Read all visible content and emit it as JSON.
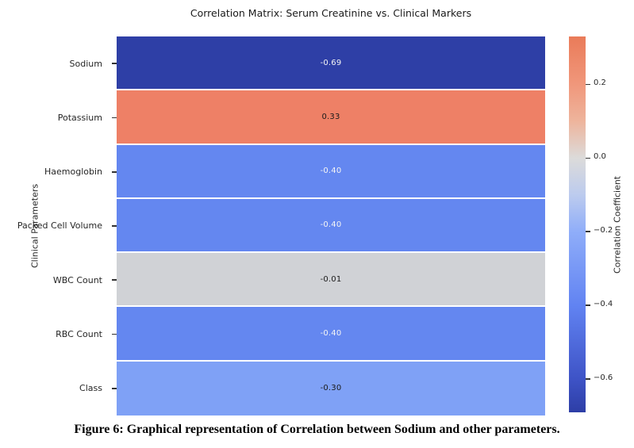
{
  "figure": {
    "caption": "Figure 6: Graphical representation of Correlation between Sodium and other parameters."
  },
  "chart_data": {
    "type": "heatmap",
    "title": "Correlation Matrix: Serum Creatinine vs. Clinical Markers",
    "xlabel": "",
    "ylabel": "Clinical Parameters",
    "column_compared": "Serum Creatinine",
    "categories": [
      "Sodium",
      "Potassium",
      "Haemoglobin",
      "Packed Cell Volume",
      "WBC Count",
      "RBC Count",
      "Class"
    ],
    "values": [
      -0.69,
      0.33,
      -0.4,
      -0.4,
      -0.01,
      -0.4,
      -0.3
    ],
    "grid": false,
    "legend_position": "colorbar-right",
    "cells": [
      {
        "label": "Sodium",
        "value": "-0.69",
        "bg": "#2e3fa6",
        "fg": "#f5f5f5"
      },
      {
        "label": "Potassium",
        "value": "0.33",
        "bg": "#ee8066",
        "fg": "#1a1a1a"
      },
      {
        "label": "Haemoglobin",
        "value": "-0.40",
        "bg": "#6487f0",
        "fg": "#f5f5f5"
      },
      {
        "label": "Packed Cell Volume",
        "value": "-0.40",
        "bg": "#6487f0",
        "fg": "#f5f5f5"
      },
      {
        "label": "WBC Count",
        "value": "-0.01",
        "bg": "#d0d2d6",
        "fg": "#1a1a1a"
      },
      {
        "label": "RBC Count",
        "value": "-0.40",
        "bg": "#6487f0",
        "fg": "#f5f5f5"
      },
      {
        "label": "Class",
        "value": "-0.30",
        "bg": "#7fa1f6",
        "fg": "#1a1a1a"
      }
    ],
    "colorbar": {
      "label": "Correlation Coefficient",
      "vmin": -0.69,
      "vmax": 0.33,
      "ticks": [
        {
          "label": "0.2",
          "value": 0.2
        },
        {
          "label": "0.0",
          "value": 0.0
        },
        {
          "label": "−0.2",
          "value": -0.2
        },
        {
          "label": "−0.4",
          "value": -0.4
        },
        {
          "label": "−0.6",
          "value": -0.6
        }
      ],
      "gradient": [
        {
          "pos": 0.0,
          "color": "#ea7b59"
        },
        {
          "pos": 0.127,
          "color": "#f0977b"
        },
        {
          "pos": 0.225,
          "color": "#eeb49c"
        },
        {
          "pos": 0.324,
          "color": "#dcdbda"
        },
        {
          "pos": 0.422,
          "color": "#bccbee"
        },
        {
          "pos": 0.52,
          "color": "#8fadf9"
        },
        {
          "pos": 0.716,
          "color": "#6183f2"
        },
        {
          "pos": 0.912,
          "color": "#3e53c6"
        },
        {
          "pos": 1.0,
          "color": "#2d3ea6"
        }
      ]
    }
  }
}
